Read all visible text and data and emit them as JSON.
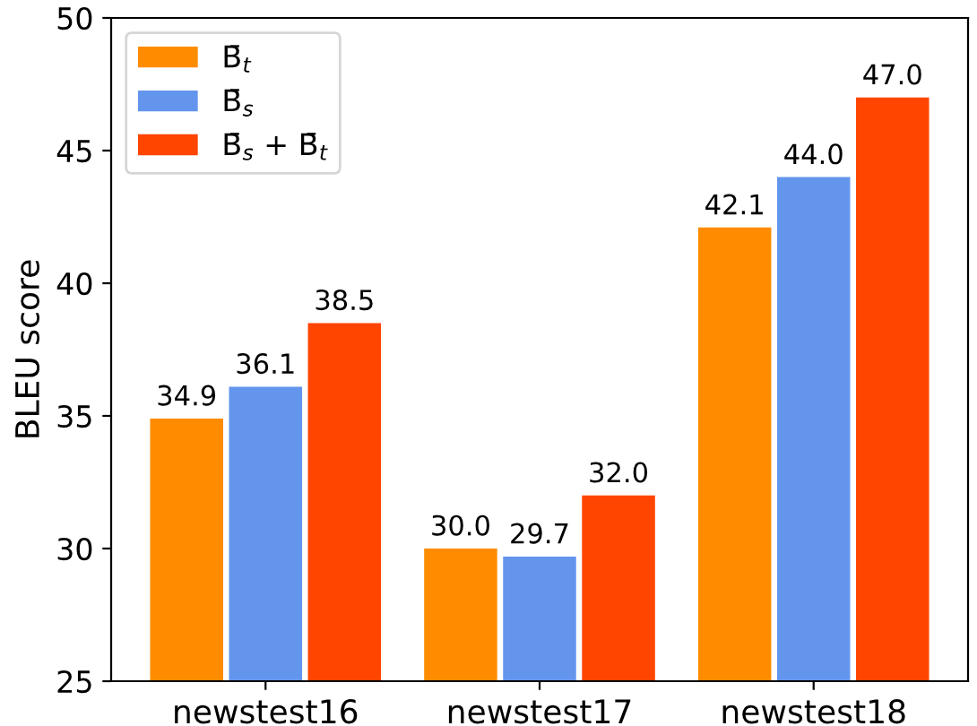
{
  "chart_data": {
    "type": "bar",
    "ylabel": "BLEU score",
    "categories": [
      "newstest16",
      "newstest17",
      "newstest18"
    ],
    "series": [
      {
        "name": "B̄$_{t}$",
        "color": "#ff8c00",
        "values": [
          34.9,
          30.0,
          42.1
        ],
        "value_labels": [
          "34.9",
          "30.0",
          "42.1"
        ]
      },
      {
        "name": "B̄$_{s}$",
        "color": "#6495ed",
        "values": [
          36.1,
          29.7,
          44.0
        ],
        "value_labels": [
          "36.1",
          "29.7",
          "44.0"
        ]
      },
      {
        "name": "B̄$_{s}$ + B̄$_{t}$",
        "color": "#ff4500",
        "values": [
          38.5,
          32.0,
          47.0
        ],
        "value_labels": [
          "38.5",
          "32.0",
          "47.0"
        ]
      }
    ],
    "ylim": [
      25,
      50
    ],
    "yticks": [
      25,
      30,
      35,
      40,
      45,
      50
    ],
    "legend": "top left",
    "grid": false
  }
}
